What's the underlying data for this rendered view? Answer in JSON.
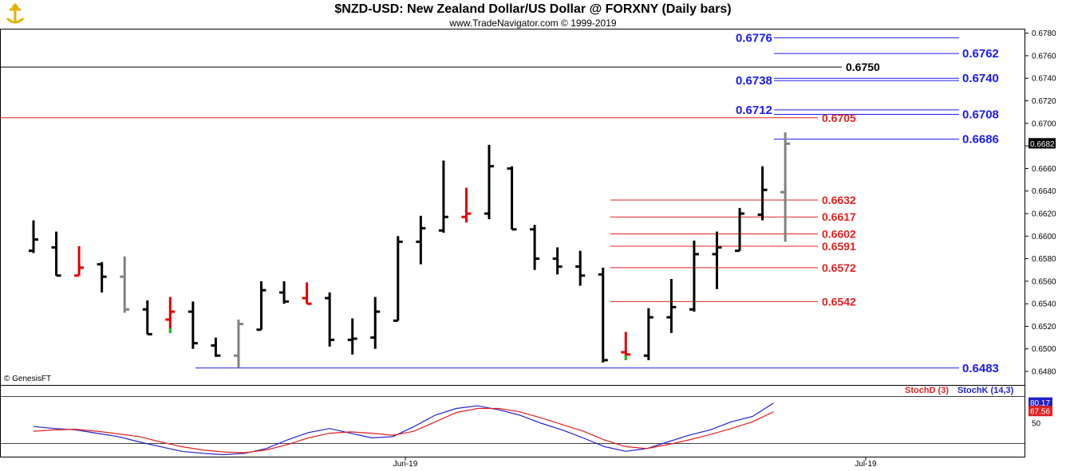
{
  "header": {
    "title": "$NZD-USD:  New Zealand Dollar/US Dollar @ FORXNY  (Daily bars)",
    "subtitle": "www.TradeNavigator.com © 1999-2019",
    "logo_icon": "anchor-logo-icon"
  },
  "credit": "© GenesisFT",
  "colors": {
    "up_bar": "#000000",
    "down_bar": "#e00000",
    "inside_bar": "#808080",
    "signal": "#00cc00",
    "blue_level": "#1a1aee",
    "red_level": "#e02020",
    "stoch_k": "#2020cc",
    "stoch_d": "#e02020"
  },
  "chart_data": [
    {
      "type": "ohlc",
      "ylim": [
        0.6468,
        0.6784
      ],
      "y_ticks": [
        "0.6780",
        "0.6760",
        "0.6740",
        "0.6720",
        "0.6700",
        "0.6680",
        "0.6660",
        "0.6640",
        "0.6620",
        "0.6600",
        "0.6580",
        "0.6560",
        "0.6540",
        "0.6520",
        "0.6500",
        "0.6480"
      ],
      "x_ticks": [
        "Jun-19",
        "Jul-19"
      ],
      "last_price": "0.6682",
      "bars": [
        {
          "o": 0.6587,
          "h": 0.6614,
          "l": 0.6585,
          "c": 0.6597,
          "color": "up"
        },
        {
          "o": 0.659,
          "h": 0.6604,
          "l": 0.6565,
          "c": 0.6565,
          "color": "up"
        },
        {
          "o": 0.6565,
          "h": 0.6591,
          "l": 0.6565,
          "c": 0.6572,
          "color": "down"
        },
        {
          "o": 0.6575,
          "h": 0.6577,
          "l": 0.655,
          "c": 0.6564,
          "color": "up"
        },
        {
          "o": 0.6564,
          "h": 0.6582,
          "l": 0.6532,
          "c": 0.6535,
          "color": "inside"
        },
        {
          "o": 0.6535,
          "h": 0.6543,
          "l": 0.6513,
          "c": 0.6513,
          "color": "up"
        },
        {
          "o": 0.6526,
          "h": 0.6546,
          "l": 0.6514,
          "c": 0.6533,
          "color": "down",
          "signal": true
        },
        {
          "o": 0.6533,
          "h": 0.6542,
          "l": 0.65,
          "c": 0.6505,
          "color": "up"
        },
        {
          "o": 0.6503,
          "h": 0.651,
          "l": 0.6493,
          "c": 0.6494,
          "color": "up"
        },
        {
          "o": 0.6494,
          "h": 0.6526,
          "l": 0.6483,
          "c": 0.6522,
          "color": "inside"
        },
        {
          "o": 0.6517,
          "h": 0.656,
          "l": 0.6517,
          "c": 0.6552,
          "color": "up"
        },
        {
          "o": 0.655,
          "h": 0.656,
          "l": 0.654,
          "c": 0.6542,
          "color": "up"
        },
        {
          "o": 0.6545,
          "h": 0.6559,
          "l": 0.654,
          "c": 0.654,
          "color": "down"
        },
        {
          "o": 0.6545,
          "h": 0.655,
          "l": 0.6502,
          "c": 0.6508,
          "color": "up"
        },
        {
          "o": 0.6508,
          "h": 0.6527,
          "l": 0.6495,
          "c": 0.6509,
          "color": "up"
        },
        {
          "o": 0.651,
          "h": 0.6546,
          "l": 0.65,
          "c": 0.6533,
          "color": "up"
        },
        {
          "o": 0.6525,
          "h": 0.66,
          "l": 0.6525,
          "c": 0.6595,
          "color": "up"
        },
        {
          "o": 0.6595,
          "h": 0.6618,
          "l": 0.6575,
          "c": 0.6607,
          "color": "up"
        },
        {
          "o": 0.6605,
          "h": 0.6667,
          "l": 0.6603,
          "c": 0.6617,
          "color": "up"
        },
        {
          "o": 0.6617,
          "h": 0.6643,
          "l": 0.6612,
          "c": 0.662,
          "color": "down"
        },
        {
          "o": 0.662,
          "h": 0.6681,
          "l": 0.6615,
          "c": 0.6662,
          "color": "up"
        },
        {
          "o": 0.666,
          "h": 0.6662,
          "l": 0.6606,
          "c": 0.6606,
          "color": "up"
        },
        {
          "o": 0.6606,
          "h": 0.661,
          "l": 0.657,
          "c": 0.658,
          "color": "up"
        },
        {
          "o": 0.658,
          "h": 0.659,
          "l": 0.6566,
          "c": 0.6573,
          "color": "up"
        },
        {
          "o": 0.6573,
          "h": 0.6587,
          "l": 0.6556,
          "c": 0.6565,
          "color": "up"
        },
        {
          "o": 0.6566,
          "h": 0.6572,
          "l": 0.6488,
          "c": 0.649,
          "color": "up"
        },
        {
          "o": 0.6497,
          "h": 0.6515,
          "l": 0.649,
          "c": 0.6495,
          "color": "down",
          "signal": true
        },
        {
          "o": 0.6494,
          "h": 0.6536,
          "l": 0.649,
          "c": 0.6528,
          "color": "up"
        },
        {
          "o": 0.6528,
          "h": 0.6562,
          "l": 0.6514,
          "c": 0.6537,
          "color": "up"
        },
        {
          "o": 0.6535,
          "h": 0.6596,
          "l": 0.6533,
          "c": 0.6584,
          "color": "up"
        },
        {
          "o": 0.6584,
          "h": 0.6604,
          "l": 0.6553,
          "c": 0.659,
          "color": "up"
        },
        {
          "o": 0.6587,
          "h": 0.6625,
          "l": 0.6587,
          "c": 0.662,
          "color": "up"
        },
        {
          "o": 0.6619,
          "h": 0.6662,
          "l": 0.6614,
          "c": 0.6641,
          "color": "up"
        },
        {
          "o": 0.6639,
          "h": 0.6692,
          "l": 0.6595,
          "c": 0.6682,
          "color": "inside"
        }
      ],
      "levels": [
        {
          "value": 0.6776,
          "label": "0.6776",
          "color": "blue",
          "label_side": "left"
        },
        {
          "value": 0.6762,
          "label": "0.6762",
          "color": "blue",
          "label_side": "right"
        },
        {
          "value": 0.675,
          "label": "0.6750",
          "color": "black",
          "label_side": "right"
        },
        {
          "value": 0.674,
          "label": "0.6740",
          "color": "blue",
          "label_side": "right"
        },
        {
          "value": 0.6738,
          "label": "0.6738",
          "color": "blue",
          "label_side": "left"
        },
        {
          "value": 0.6712,
          "label": "0.6712",
          "color": "blue",
          "label_side": "left"
        },
        {
          "value": 0.6708,
          "label": "0.6708",
          "color": "blue",
          "label_side": "right"
        },
        {
          "value": 0.6705,
          "label": "0.6705",
          "color": "red",
          "label_side": "right"
        },
        {
          "value": 0.6686,
          "label": "0.6686",
          "color": "blue",
          "label_side": "right"
        },
        {
          "value": 0.6632,
          "label": "0.6632",
          "color": "red",
          "label_side": "right"
        },
        {
          "value": 0.6617,
          "label": "0.6617",
          "color": "red",
          "label_side": "right"
        },
        {
          "value": 0.6602,
          "label": "0.6602",
          "color": "red",
          "label_side": "right"
        },
        {
          "value": 0.6591,
          "label": "0.6591",
          "color": "red",
          "label_side": "right"
        },
        {
          "value": 0.6572,
          "label": "0.6572",
          "color": "red",
          "label_side": "right"
        },
        {
          "value": 0.6542,
          "label": "0.6542",
          "color": "red",
          "label_side": "right"
        },
        {
          "value": 0.6483,
          "label": "0.6483",
          "color": "blue",
          "label_side": "right"
        }
      ]
    },
    {
      "type": "line",
      "ylim": [
        0,
        100
      ],
      "legend": [
        "StochD (3)",
        "StochK (14,3)"
      ],
      "y_ticks": [
        "50"
      ],
      "k_label": "80.17",
      "d_label": "67.56",
      "series": [
        {
          "name": "StochK (14,3)",
          "color": "blue",
          "values": [
            45,
            42,
            40,
            35,
            30,
            22,
            15,
            8,
            5,
            3,
            5,
            12,
            25,
            36,
            42,
            35,
            28,
            30,
            45,
            62,
            72,
            76,
            70,
            62,
            50,
            40,
            28,
            15,
            8,
            12,
            22,
            32,
            40,
            52,
            60,
            80
          ]
        },
        {
          "name": "StochD (3)",
          "color": "red",
          "values": [
            38,
            40,
            41,
            38,
            34,
            30,
            22,
            15,
            10,
            7,
            6,
            10,
            18,
            28,
            35,
            37,
            35,
            32,
            38,
            52,
            66,
            72,
            72,
            67,
            58,
            48,
            38,
            25,
            15,
            12,
            18,
            25,
            33,
            42,
            52,
            67
          ]
        }
      ]
    }
  ]
}
